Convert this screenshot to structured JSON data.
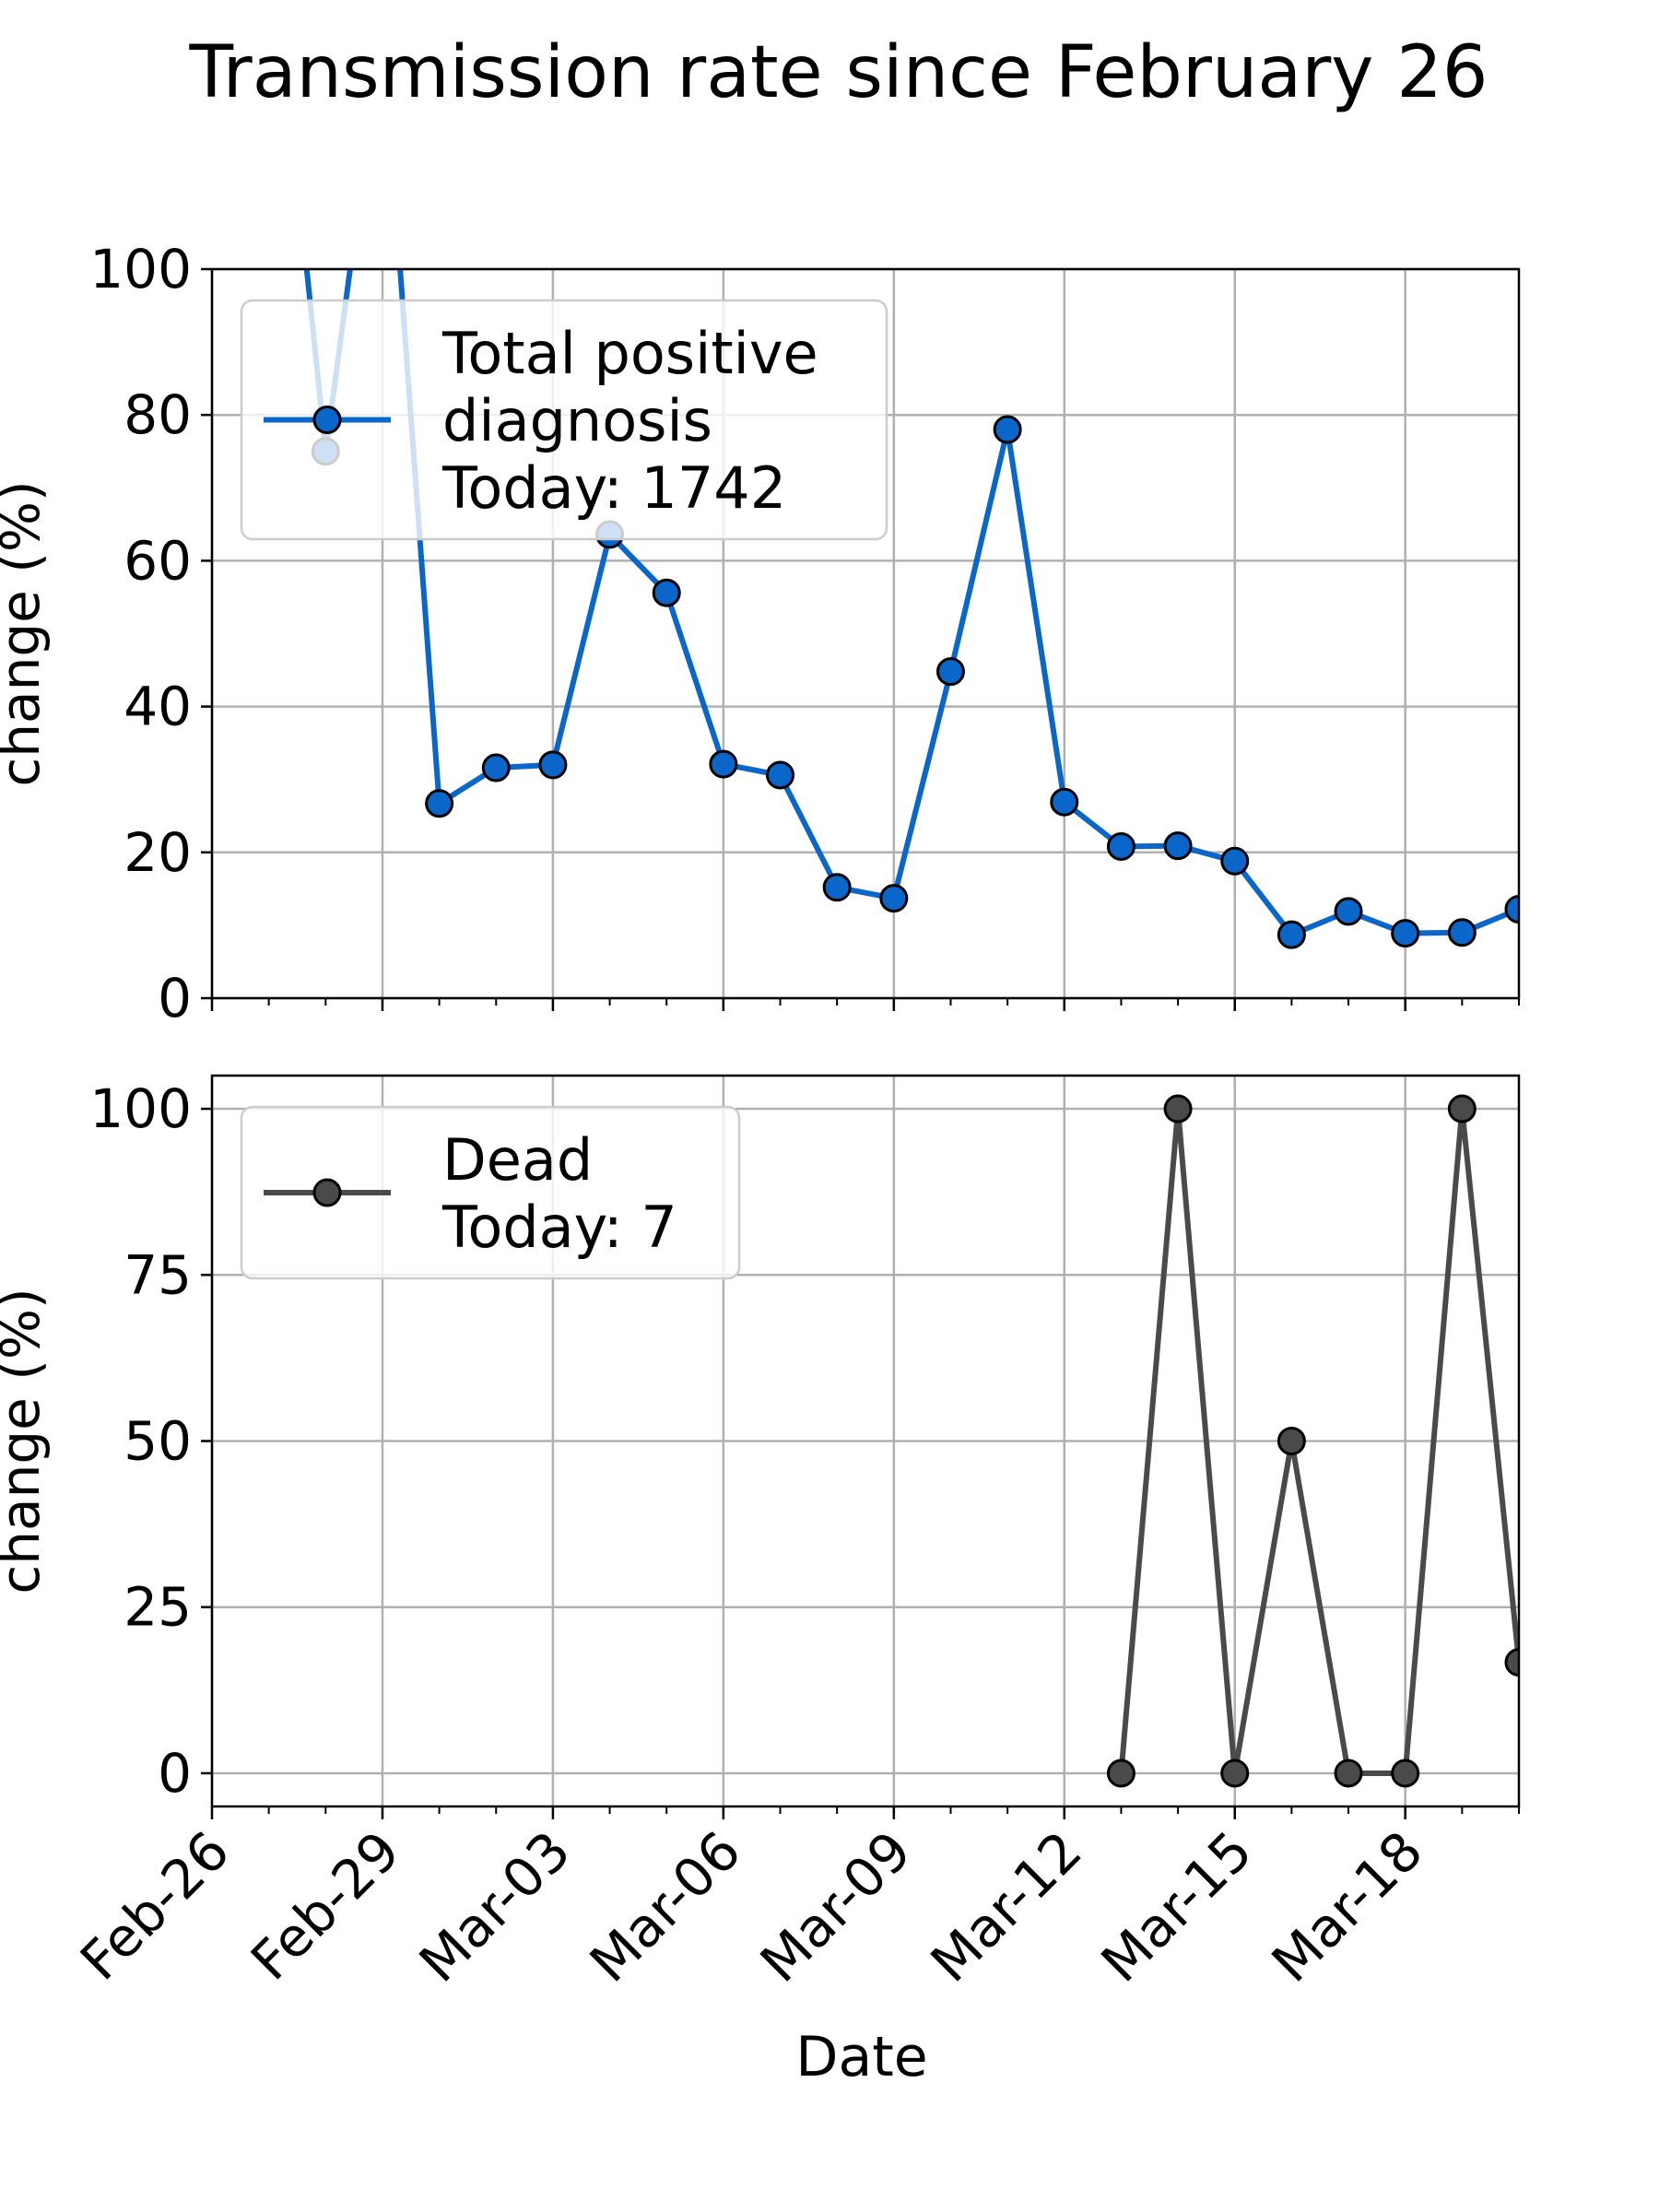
{
  "figure_title": "Transmission rate since February 26",
  "chart_data": [
    {
      "type": "line",
      "ylabel": "change (%)",
      "xlabel": "",
      "ylim": [
        0,
        100
      ],
      "yticks": [
        0,
        20,
        40,
        60,
        80,
        100
      ],
      "grid": true,
      "legend_placement": "upper-left",
      "legend_lines": [
        "Total positive",
        "diagnosis",
        "Today: 1742"
      ],
      "line_color": "#0a66c8",
      "marker_color": "#0a66c8",
      "series": [
        {
          "name": "Total positive diagnosis Today: 1742",
          "points": [
            [
              "2020-02-27",
              150
            ],
            [
              "2020-02-28",
              75
            ],
            [
              "2020-02-29",
              133
            ],
            [
              "2020-03-01",
              26.7
            ],
            [
              "2020-03-02",
              31.6
            ],
            [
              "2020-03-03",
              32.0
            ],
            [
              "2020-03-04",
              63.6
            ],
            [
              "2020-03-05",
              55.6
            ],
            [
              "2020-03-06",
              32.1
            ],
            [
              "2020-03-07",
              30.6
            ],
            [
              "2020-03-08",
              15.2
            ],
            [
              "2020-03-09",
              13.7
            ],
            [
              "2020-03-10",
              44.8
            ],
            [
              "2020-03-11",
              78.0
            ],
            [
              "2020-03-12",
              26.9
            ],
            [
              "2020-03-13",
              20.8
            ],
            [
              "2020-03-14",
              20.9
            ],
            [
              "2020-03-15",
              18.8
            ],
            [
              "2020-03-16",
              8.7
            ],
            [
              "2020-03-17",
              11.9
            ],
            [
              "2020-03-18",
              8.9
            ],
            [
              "2020-03-19",
              9.0
            ],
            [
              "2020-03-20",
              12.2
            ]
          ]
        }
      ]
    },
    {
      "type": "line",
      "ylabel": "change (%)",
      "xlabel": "Date",
      "ylim": [
        -5,
        105
      ],
      "yticks": [
        0,
        25,
        50,
        75,
        100
      ],
      "grid": true,
      "legend_placement": "upper-left",
      "legend_lines": [
        "Dead",
        "Today: 7"
      ],
      "line_color": "#4a4a4a",
      "marker_color": "#4a4a4a",
      "series": [
        {
          "name": "Dead Today: 7",
          "points": [
            [
              "2020-03-13",
              0
            ],
            [
              "2020-03-14",
              100
            ],
            [
              "2020-03-15",
              0
            ],
            [
              "2020-03-16",
              50
            ],
            [
              "2020-03-17",
              0
            ],
            [
              "2020-03-18",
              0
            ],
            [
              "2020-03-19",
              100
            ],
            [
              "2020-03-20",
              16.7
            ]
          ]
        }
      ]
    }
  ],
  "x_axis": {
    "range": [
      "2020-02-26",
      "2020-03-20"
    ],
    "major_ticks": [
      "2020-02-26",
      "2020-02-29",
      "2020-03-03",
      "2020-03-06",
      "2020-03-09",
      "2020-03-12",
      "2020-03-15",
      "2020-03-18"
    ],
    "tick_labels": [
      "Feb-26",
      "Feb-29",
      "Mar-03",
      "Mar-06",
      "Mar-09",
      "Mar-12",
      "Mar-15",
      "Mar-18"
    ]
  }
}
